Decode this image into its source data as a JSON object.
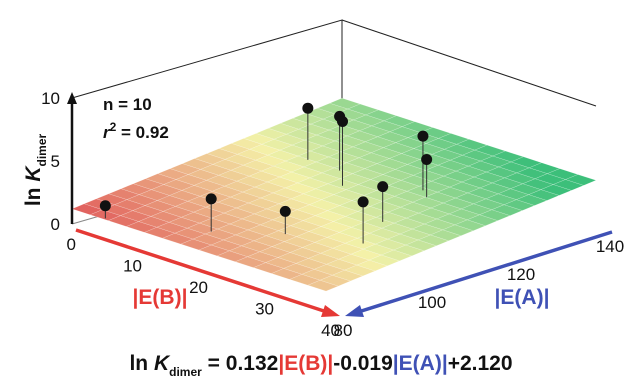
{
  "chart_data": {
    "type": "scatter",
    "subtype": "3d-scatter-with-fitted-plane",
    "zlabel": {
      "text": "ln K",
      "sub": "dimer"
    },
    "axis_b_label": "|E(B)|",
    "axis_a_label": "|E(A)|",
    "z_ticks": [
      "0",
      "5",
      "10"
    ],
    "b_ticks": [
      "0",
      "10",
      "20",
      "30",
      "40"
    ],
    "a_ticks": [
      "80",
      "100",
      "120",
      "140"
    ],
    "zlim": [
      0,
      10
    ],
    "b_range": [
      0,
      40
    ],
    "a_range": [
      80,
      140
    ],
    "stats": {
      "n": "n = 10",
      "r2_prefix": "r",
      "r2_sup": "2",
      "r2_value": " = 0.92"
    },
    "points": [
      {
        "b": 1,
        "a": 86,
        "z": 1.0
      },
      {
        "b": 12,
        "a": 94,
        "z": 2.6
      },
      {
        "b": 18,
        "a": 102,
        "z": 1.8
      },
      {
        "b": 22,
        "a": 118,
        "z": 2.8
      },
      {
        "b": 19,
        "a": 132,
        "z": 3.0
      },
      {
        "b": 17,
        "a": 134,
        "z": 4.3
      },
      {
        "b": 6,
        "a": 131,
        "z": 4.3
      },
      {
        "b": 1,
        "a": 131,
        "z": 4.1
      },
      {
        "b": 10,
        "a": 126,
        "z": 5.1
      },
      {
        "b": 26,
        "a": 108,
        "z": 3.3
      }
    ],
    "equation": {
      "lead": "ln ",
      "k": "K",
      "sub": "dimer",
      "part1": " = 0.132",
      "eb": "|E(B)|",
      "part2": "-0.019",
      "ea": "|E(A)|",
      "part3": "+2.120"
    },
    "colors": {
      "axis_b": "#e53935",
      "axis_a": "#3f51b5",
      "plane_low": "#3cbf7a",
      "plane_mid": "#f4f1a8",
      "plane_high": "#e05a5a"
    }
  }
}
